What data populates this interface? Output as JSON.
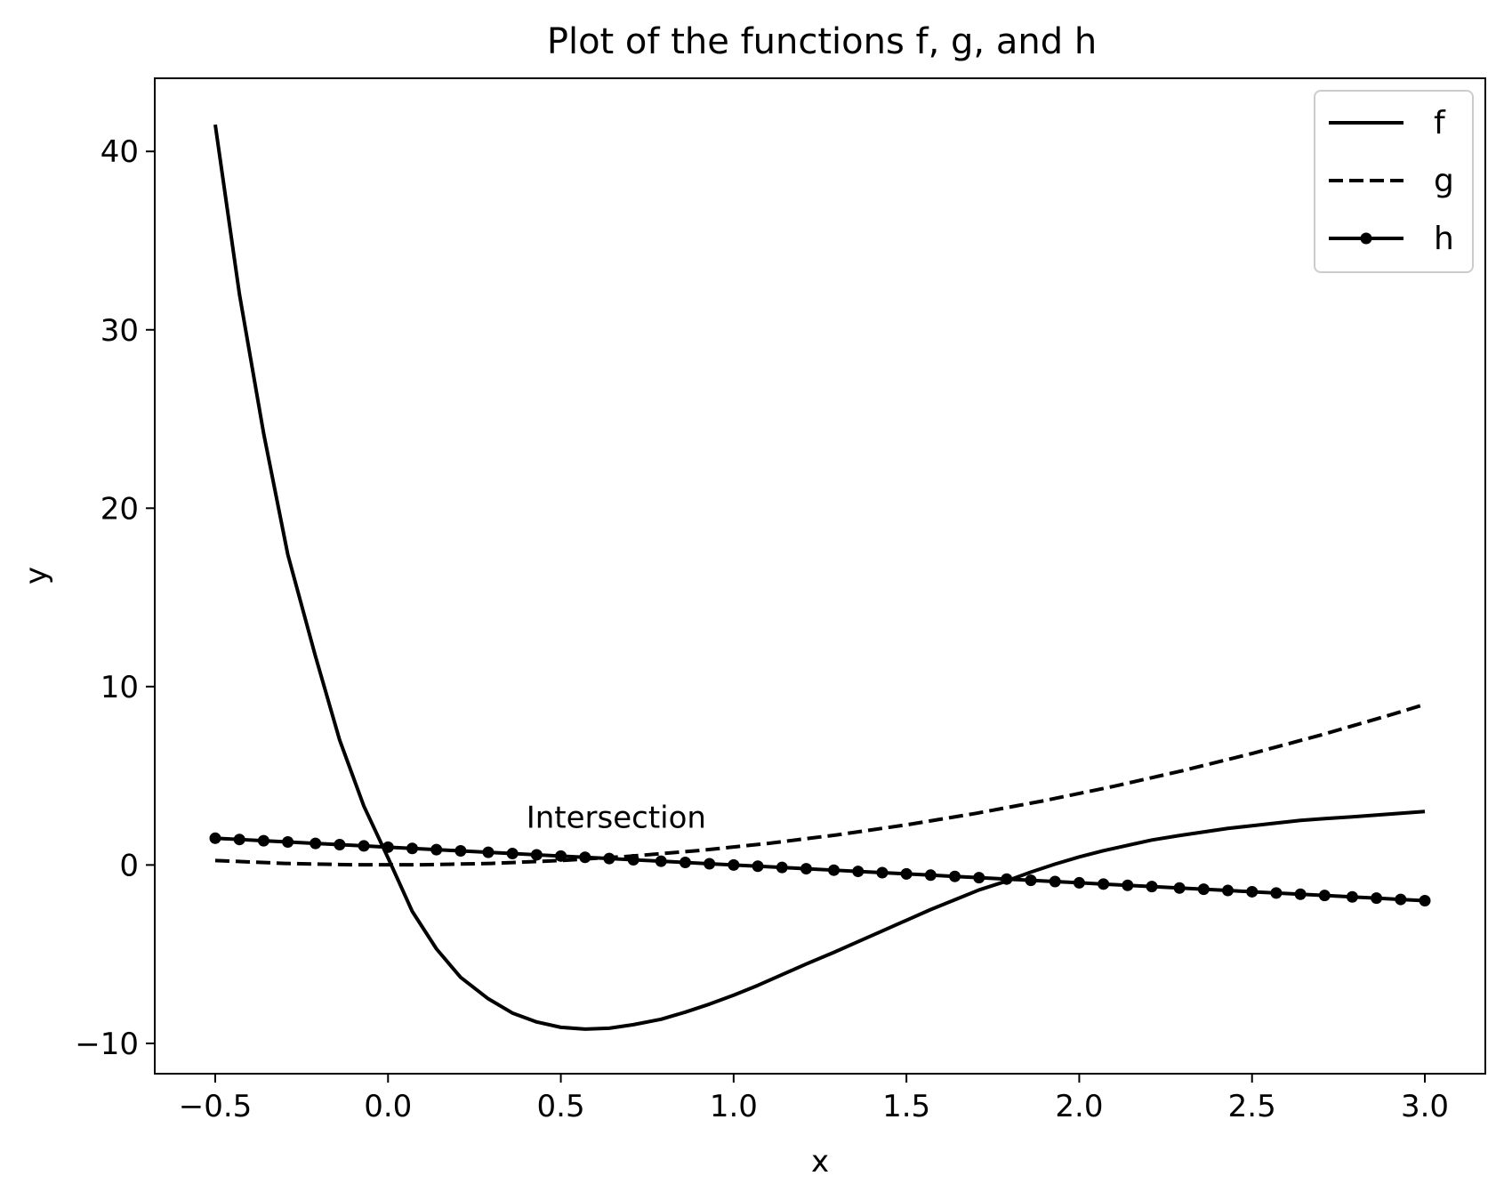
{
  "chart_data": {
    "type": "line",
    "title": "Plot of the functions f, g, and h",
    "xlabel": "x",
    "ylabel": "y",
    "xlim": [
      -0.675,
      3.175
    ],
    "ylim": [
      -11.7,
      44.1
    ],
    "xticks": [
      -0.5,
      0.0,
      0.5,
      1.0,
      1.5,
      2.0,
      2.5,
      3.0
    ],
    "xtick_labels": [
      "−0.5",
      "0.0",
      "0.5",
      "1.0",
      "1.5",
      "2.0",
      "2.5",
      "3.0"
    ],
    "yticks": [
      -10,
      0,
      10,
      20,
      30,
      40
    ],
    "ytick_labels": [
      "−10",
      "0",
      "10",
      "20",
      "30",
      "40"
    ],
    "grid": false,
    "legend": "top-right",
    "line_color": "#000000",
    "annotations": [
      {
        "text": "Intersection",
        "x": 0.4,
        "y": 2.1
      }
    ],
    "series": [
      {
        "name": "f",
        "style": "solid",
        "x": [
          -0.5,
          -0.43,
          -0.36,
          -0.29,
          -0.21,
          -0.14,
          -0.07,
          0.0,
          0.07,
          0.14,
          0.21,
          0.29,
          0.36,
          0.43,
          0.5,
          0.57,
          0.64,
          0.71,
          0.79,
          0.86,
          0.93,
          1.0,
          1.07,
          1.14,
          1.21,
          1.29,
          1.36,
          1.43,
          1.5,
          1.57,
          1.64,
          1.71,
          1.79,
          1.86,
          1.93,
          2.0,
          2.07,
          2.14,
          2.21,
          2.29,
          2.36,
          2.43,
          2.5,
          2.57,
          2.64,
          2.71,
          2.79,
          2.86,
          2.93,
          3.0
        ],
        "y": [
          41.5,
          32.0,
          24.2,
          17.4,
          11.7,
          7.0,
          3.3,
          0.4,
          -2.6,
          -4.7,
          -6.3,
          -7.5,
          -8.3,
          -8.8,
          -9.1,
          -9.2,
          -9.15,
          -8.95,
          -8.65,
          -8.25,
          -7.8,
          -7.3,
          -6.75,
          -6.15,
          -5.55,
          -4.9,
          -4.3,
          -3.7,
          -3.1,
          -2.5,
          -1.95,
          -1.4,
          -0.9,
          -0.4,
          0.05,
          0.45,
          0.8,
          1.1,
          1.4,
          1.65,
          1.85,
          2.05,
          2.2,
          2.35,
          2.5,
          2.6,
          2.7,
          2.8,
          2.9,
          3.0
        ]
      },
      {
        "name": "g",
        "style": "dashed",
        "x": [
          -0.5,
          -0.3,
          -0.1,
          0.1,
          0.3,
          0.5,
          0.7,
          0.9,
          1.1,
          1.3,
          1.5,
          1.7,
          1.9,
          2.1,
          2.3,
          2.5,
          2.7,
          2.9,
          3.0
        ],
        "y": [
          0.25,
          0.09,
          0.01,
          0.01,
          0.09,
          0.25,
          0.49,
          0.81,
          1.21,
          1.69,
          2.25,
          2.89,
          3.61,
          4.41,
          5.29,
          6.25,
          7.29,
          8.41,
          9.0
        ]
      },
      {
        "name": "h",
        "style": "solid-dot",
        "x": [
          -0.5,
          -0.43,
          -0.36,
          -0.29,
          -0.21,
          -0.14,
          -0.07,
          0.0,
          0.07,
          0.14,
          0.21,
          0.29,
          0.36,
          0.43,
          0.5,
          0.57,
          0.64,
          0.71,
          0.79,
          0.86,
          0.93,
          1.0,
          1.07,
          1.14,
          1.21,
          1.29,
          1.36,
          1.43,
          1.5,
          1.57,
          1.64,
          1.71,
          1.79,
          1.86,
          1.93,
          2.0,
          2.07,
          2.14,
          2.21,
          2.29,
          2.36,
          2.43,
          2.5,
          2.57,
          2.64,
          2.71,
          2.79,
          2.86,
          2.93,
          3.0
        ],
        "y": [
          1.5,
          1.43,
          1.36,
          1.29,
          1.21,
          1.14,
          1.07,
          1.0,
          0.93,
          0.86,
          0.79,
          0.71,
          0.64,
          0.57,
          0.5,
          0.43,
          0.36,
          0.29,
          0.21,
          0.14,
          0.07,
          0.0,
          -0.07,
          -0.14,
          -0.21,
          -0.29,
          -0.36,
          -0.43,
          -0.5,
          -0.57,
          -0.64,
          -0.71,
          -0.79,
          -0.86,
          -0.93,
          -1.0,
          -1.07,
          -1.14,
          -1.21,
          -1.29,
          -1.36,
          -1.43,
          -1.5,
          -1.57,
          -1.64,
          -1.71,
          -1.79,
          -1.86,
          -1.93,
          -2.0
        ]
      }
    ]
  }
}
